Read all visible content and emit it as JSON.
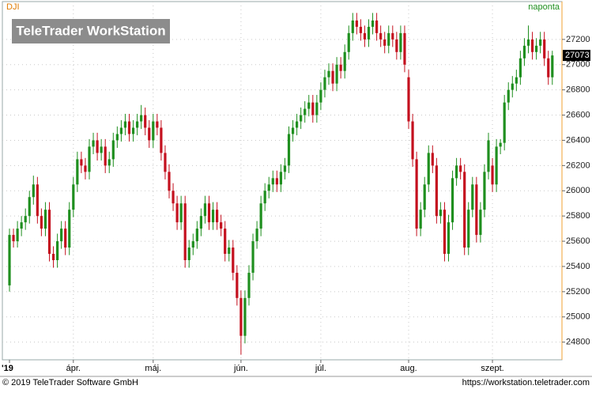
{
  "chart_data": {
    "type": "candlestick",
    "title": "DJI",
    "subtitle": "naponta",
    "watermark": "TeleTrader WorkStation",
    "footer_left": "© 2019 TeleTrader Software GmbH",
    "footer_right": "https://workstation.teletrader.com",
    "ylim": [
      24660,
      27500
    ],
    "yticks": [
      24800,
      25000,
      25200,
      25400,
      25600,
      25800,
      26000,
      26200,
      26400,
      26600,
      26800,
      27000,
      27200
    ],
    "grid": true,
    "categories": [
      "'19",
      null,
      null,
      null,
      null,
      null,
      null,
      null,
      null,
      null,
      null,
      null,
      null,
      null,
      null,
      null,
      "ápr.",
      null,
      null,
      null,
      null,
      null,
      null,
      null,
      null,
      null,
      null,
      null,
      null,
      null,
      null,
      null,
      null,
      null,
      null,
      null,
      "máj.",
      null,
      null,
      null,
      null,
      null,
      null,
      null,
      null,
      null,
      null,
      null,
      null,
      null,
      null,
      null,
      null,
      null,
      null,
      null,
      null,
      null,
      "jún.",
      null,
      null,
      null,
      null,
      null,
      null,
      null,
      null,
      null,
      null,
      null,
      null,
      null,
      null,
      null,
      null,
      null,
      null,
      null,
      "júl.",
      null,
      null,
      null,
      null,
      null,
      null,
      null,
      null,
      null,
      null,
      null,
      null,
      null,
      null,
      null,
      null,
      null,
      null,
      null,
      null,
      null,
      "aug.",
      null,
      null,
      null,
      null,
      null,
      null,
      null,
      null,
      null,
      null,
      null,
      null,
      null,
      null,
      null,
      null,
      null,
      null,
      null,
      null,
      "szept.",
      null,
      null,
      null,
      null,
      null,
      null,
      null,
      null,
      null,
      null,
      null,
      null,
      null,
      null,
      null
    ],
    "series": [
      {
        "name": "DJI",
        "up_color": "#1f8f1f",
        "down_color": "#c4101e",
        "values": [
          [
            25250,
            25700,
            25200,
            25650
          ],
          [
            25650,
            25700,
            25550,
            25600
          ],
          [
            25600,
            25760,
            25550,
            25700
          ],
          [
            25700,
            25800,
            25640,
            25750
          ],
          [
            25750,
            25860,
            25690,
            25800
          ],
          [
            25800,
            26000,
            25740,
            25950
          ],
          [
            25950,
            26120,
            25890,
            26050
          ],
          [
            26050,
            26110,
            25740,
            25800
          ],
          [
            25800,
            25860,
            25640,
            25700
          ],
          [
            25700,
            25910,
            25640,
            25850
          ],
          [
            25850,
            25910,
            25440,
            25500
          ],
          [
            25500,
            25560,
            25390,
            25450
          ],
          [
            25450,
            25660,
            25390,
            25600
          ],
          [
            25600,
            25760,
            25540,
            25700
          ],
          [
            25700,
            25760,
            25490,
            25550
          ],
          [
            25550,
            25910,
            25490,
            25850
          ],
          [
            25850,
            26110,
            25790,
            26050
          ],
          [
            26050,
            26310,
            25990,
            26250
          ],
          [
            26250,
            26310,
            26140,
            26200
          ],
          [
            26200,
            26260,
            26090,
            26150
          ],
          [
            26150,
            26410,
            26090,
            26350
          ],
          [
            26350,
            26460,
            26290,
            26400
          ],
          [
            26400,
            26460,
            26240,
            26300
          ],
          [
            26300,
            26410,
            26240,
            26350
          ],
          [
            26350,
            26410,
            26140,
            26200
          ],
          [
            26200,
            26310,
            26140,
            26250
          ],
          [
            26250,
            26460,
            26190,
            26400
          ],
          [
            26400,
            26510,
            26340,
            26450
          ],
          [
            26450,
            26560,
            26390,
            26500
          ],
          [
            26500,
            26610,
            26440,
            26550
          ],
          [
            26550,
            26610,
            26390,
            26450
          ],
          [
            26450,
            26560,
            26390,
            26500
          ],
          [
            26500,
            26610,
            26440,
            26550
          ],
          [
            26550,
            26680,
            26490,
            26600
          ],
          [
            26600,
            26660,
            26440,
            26500
          ],
          [
            26500,
            26560,
            26340,
            26400
          ],
          [
            26400,
            26610,
            26340,
            26550
          ],
          [
            26550,
            26610,
            26440,
            26500
          ],
          [
            26500,
            26560,
            26240,
            26300
          ],
          [
            26300,
            26360,
            26090,
            26150
          ],
          [
            26150,
            26210,
            25940,
            26000
          ],
          [
            26000,
            26060,
            25840,
            25900
          ],
          [
            25900,
            25960,
            25690,
            25750
          ],
          [
            25750,
            25960,
            25690,
            25900
          ],
          [
            25900,
            25960,
            25390,
            25450
          ],
          [
            25450,
            25610,
            25390,
            25550
          ],
          [
            25550,
            25660,
            25490,
            25600
          ],
          [
            25600,
            25760,
            25540,
            25700
          ],
          [
            25700,
            25860,
            25640,
            25800
          ],
          [
            25800,
            25960,
            25740,
            25900
          ],
          [
            25900,
            25960,
            25690,
            25750
          ],
          [
            25750,
            25910,
            25690,
            25850
          ],
          [
            25850,
            25910,
            25690,
            25750
          ],
          [
            25750,
            25810,
            25640,
            25700
          ],
          [
            25700,
            25760,
            25440,
            25500
          ],
          [
            25500,
            25610,
            25440,
            25550
          ],
          [
            25550,
            25610,
            25290,
            25350
          ],
          [
            25350,
            25410,
            25090,
            25150
          ],
          [
            25150,
            25210,
            24700,
            24850
          ],
          [
            24850,
            25210,
            24790,
            25150
          ],
          [
            25150,
            25410,
            25090,
            25350
          ],
          [
            25350,
            25660,
            25290,
            25600
          ],
          [
            25600,
            25760,
            25540,
            25700
          ],
          [
            25700,
            25960,
            25640,
            25900
          ],
          [
            25900,
            26060,
            25840,
            26000
          ],
          [
            26000,
            26110,
            25940,
            26050
          ],
          [
            26050,
            26160,
            25990,
            26100
          ],
          [
            26100,
            26160,
            25990,
            26050
          ],
          [
            26050,
            26210,
            25990,
            26150
          ],
          [
            26150,
            26260,
            26090,
            26200
          ],
          [
            26200,
            26510,
            26140,
            26450
          ],
          [
            26450,
            26560,
            26390,
            26500
          ],
          [
            26500,
            26610,
            26440,
            26550
          ],
          [
            26550,
            26660,
            26490,
            26600
          ],
          [
            26600,
            26710,
            26540,
            26650
          ],
          [
            26650,
            26760,
            26590,
            26700
          ],
          [
            26700,
            26760,
            26540,
            26600
          ],
          [
            26600,
            26760,
            26540,
            26700
          ],
          [
            26700,
            26860,
            26640,
            26800
          ],
          [
            26800,
            26960,
            26740,
            26900
          ],
          [
            26900,
            27010,
            26840,
            26950
          ],
          [
            26950,
            27010,
            26790,
            26850
          ],
          [
            26850,
            27060,
            26790,
            27000
          ],
          [
            27000,
            27060,
            26890,
            26950
          ],
          [
            26950,
            27160,
            26890,
            27100
          ],
          [
            27100,
            27310,
            27040,
            27250
          ],
          [
            27250,
            27410,
            27190,
            27350
          ],
          [
            27350,
            27410,
            27240,
            27300
          ],
          [
            27300,
            27360,
            27190,
            27250
          ],
          [
            27250,
            27310,
            27140,
            27200
          ],
          [
            27200,
            27360,
            27140,
            27300
          ],
          [
            27300,
            27410,
            27240,
            27350
          ],
          [
            27350,
            27410,
            27190,
            27250
          ],
          [
            27250,
            27310,
            27140,
            27200
          ],
          [
            27200,
            27260,
            27090,
            27150
          ],
          [
            27150,
            27310,
            27090,
            27250
          ],
          [
            27250,
            27310,
            27140,
            27200
          ],
          [
            27200,
            27260,
            27040,
            27100
          ],
          [
            27100,
            27310,
            27040,
            27250
          ],
          [
            27250,
            27310,
            26940,
            27000
          ],
          [
            26900,
            26960,
            26490,
            26550
          ],
          [
            26550,
            26610,
            26190,
            26250
          ],
          [
            26250,
            26310,
            25640,
            25700
          ],
          [
            25700,
            25910,
            25640,
            25850
          ],
          [
            25850,
            26110,
            25790,
            26050
          ],
          [
            26050,
            26360,
            25990,
            26300
          ],
          [
            26300,
            26360,
            26140,
            26200
          ],
          [
            26200,
            26260,
            25740,
            25800
          ],
          [
            25800,
            25910,
            25740,
            25850
          ],
          [
            25850,
            25910,
            25440,
            25500
          ],
          [
            25500,
            25810,
            25440,
            25750
          ],
          [
            25750,
            26160,
            25690,
            26100
          ],
          [
            26100,
            26260,
            26040,
            26200
          ],
          [
            26200,
            26260,
            26090,
            26150
          ],
          [
            26150,
            26210,
            25490,
            25550
          ],
          [
            25550,
            25910,
            25490,
            25850
          ],
          [
            25850,
            26110,
            25790,
            26050
          ],
          [
            26050,
            26110,
            25590,
            25650
          ],
          [
            25650,
            25910,
            25590,
            25850
          ],
          [
            25850,
            26210,
            25790,
            26150
          ],
          [
            26150,
            26460,
            26090,
            26400
          ],
          [
            26200,
            26260,
            25990,
            26050
          ],
          [
            26050,
            26410,
            25990,
            26350
          ],
          [
            26350,
            26410,
            26290,
            26380
          ],
          [
            26380,
            26760,
            26320,
            26700
          ],
          [
            26700,
            26860,
            26640,
            26800
          ],
          [
            26800,
            26910,
            26740,
            26850
          ],
          [
            26850,
            26960,
            26790,
            26900
          ],
          [
            26900,
            27110,
            26840,
            27050
          ],
          [
            27050,
            27210,
            26990,
            27150
          ],
          [
            27150,
            27310,
            27090,
            27200
          ],
          [
            27200,
            27260,
            27040,
            27100
          ],
          [
            27100,
            27210,
            27040,
            27150
          ],
          [
            27150,
            27260,
            27090,
            27200
          ],
          [
            27200,
            27260,
            26990,
            27050
          ],
          [
            27050,
            27110,
            26840,
            26900
          ],
          [
            26900,
            27110,
            26840,
            27073
          ]
        ]
      }
    ]
  }
}
